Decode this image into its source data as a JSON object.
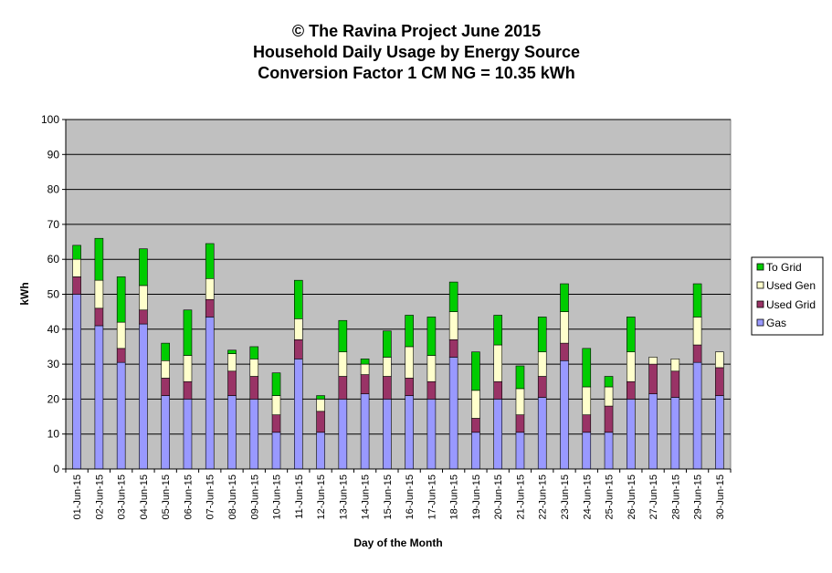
{
  "chart_data": {
    "type": "bar",
    "stacked": true,
    "title_lines": [
      "© The Ravina Project June 2015",
      "Household Daily Usage by Energy Source",
      "Conversion Factor 1 CM NG = 10.35 kWh"
    ],
    "xlabel": "Day of the Month",
    "ylabel": "kWh",
    "ylim": [
      0,
      100
    ],
    "yticks": [
      0,
      10,
      20,
      30,
      40,
      50,
      60,
      70,
      80,
      90,
      100
    ],
    "grid": true,
    "legend_position": "right",
    "categories": [
      "01-Jun-15",
      "02-Jun-15",
      "03-Jun-15",
      "04-Jun-15",
      "05-Jun-15",
      "06-Jun-15",
      "07-Jun-15",
      "08-Jun-15",
      "09-Jun-15",
      "10-Jun-15",
      "11-Jun-15",
      "12-Jun-15",
      "13-Jun-15",
      "14-Jun-15",
      "15-Jun-15",
      "16-Jun-15",
      "17-Jun-15",
      "18-Jun-15",
      "19-Jun-15",
      "20-Jun-15",
      "21-Jun-15",
      "22-Jun-15",
      "23-Jun-15",
      "24-Jun-15",
      "25-Jun-15",
      "26-Jun-15",
      "27-Jun-15",
      "28-Jun-15",
      "29-Jun-15",
      "30-Jun-15"
    ],
    "series": [
      {
        "name": "Gas",
        "color": "#9999ff",
        "values": [
          50,
          41,
          30.5,
          41.5,
          21,
          20,
          43.5,
          21,
          20,
          10.5,
          31.5,
          10.5,
          20,
          21.5,
          20,
          21,
          20,
          32,
          10.5,
          20,
          10.5,
          20.5,
          31,
          10.5,
          10.5,
          20,
          21.5,
          20.5,
          30.5,
          21
        ]
      },
      {
        "name": "Used Grid",
        "color": "#993366",
        "values": [
          5,
          5,
          4,
          4,
          5,
          5,
          5,
          7,
          6.5,
          5,
          5.5,
          6,
          6.5,
          5.5,
          6.5,
          5,
          5,
          5,
          4,
          5,
          5,
          6,
          5,
          5,
          7.5,
          5,
          8.5,
          7.5,
          5,
          8
        ]
      },
      {
        "name": "Used Gen",
        "color": "#ffffcc",
        "values": [
          5,
          8,
          7.5,
          7,
          5,
          7.5,
          6,
          5,
          5,
          5.5,
          6,
          3.5,
          7,
          3,
          5.5,
          9,
          7.5,
          8,
          8,
          10.5,
          7.5,
          7,
          9,
          8,
          5.5,
          8.5,
          2,
          3.5,
          8,
          4.5
        ]
      },
      {
        "name": "To Grid",
        "color": "#00cc00",
        "values": [
          4,
          12,
          13,
          10.5,
          5,
          13,
          10,
          1,
          3.5,
          6.5,
          11,
          1,
          9,
          1.5,
          7.5,
          9,
          11,
          8.5,
          11,
          8.5,
          6.5,
          10,
          8,
          11,
          3,
          10,
          0,
          0,
          9.5,
          0
        ]
      }
    ]
  }
}
